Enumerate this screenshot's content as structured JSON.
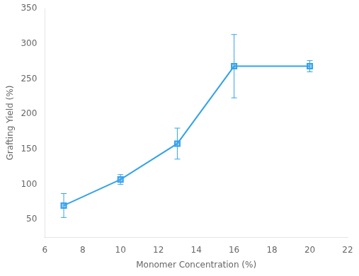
{
  "chart_data": {
    "type": "line",
    "x": [
      7,
      10,
      13,
      16,
      20
    ],
    "values": [
      70,
      107,
      158,
      268,
      268
    ],
    "yerr": [
      17,
      7,
      22,
      45,
      8
    ],
    "xlabel": "Monomer Concentration (%)",
    "ylabel": "Grafting Yield (%)",
    "xlim": [
      6,
      22
    ],
    "ylim": [
      25,
      350
    ],
    "xticks": [
      6,
      8,
      10,
      12,
      14,
      16,
      18,
      20,
      22
    ],
    "yticks": [
      50,
      100,
      150,
      200,
      250,
      300,
      350
    ],
    "marker": "square",
    "grid": false
  }
}
